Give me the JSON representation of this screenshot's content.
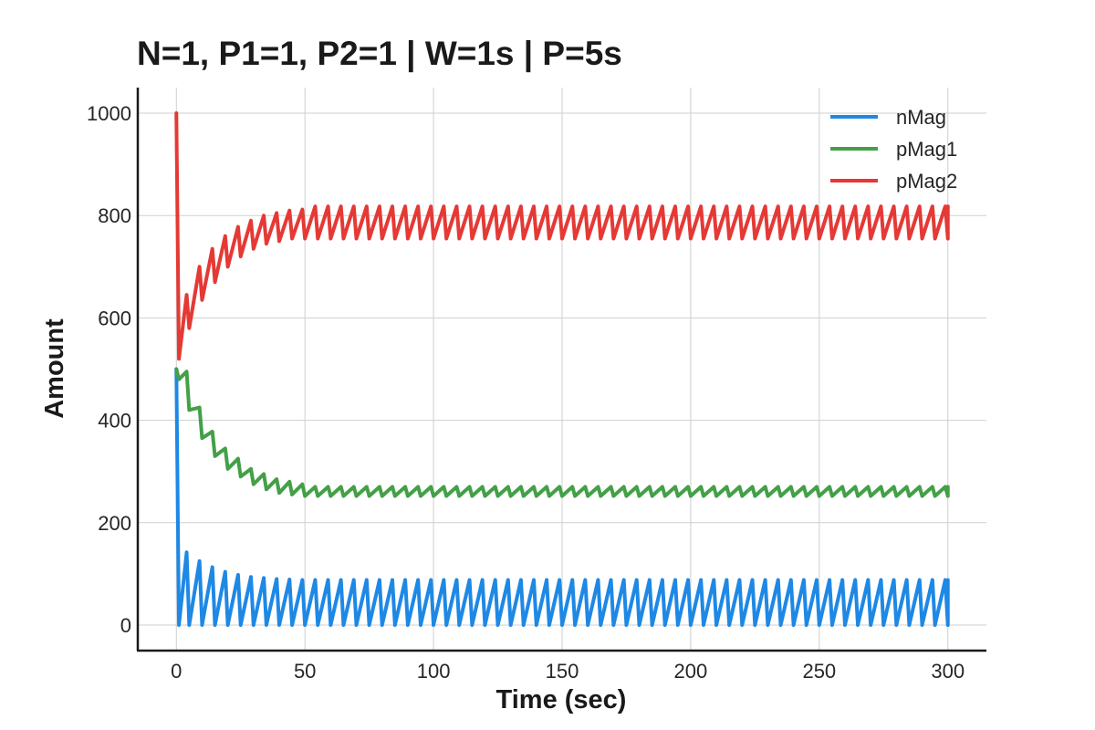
{
  "chart_data": {
    "type": "line",
    "title": "N=1, P1=1, P2=1 | W=1s | P=5s",
    "xlabel": "Time (sec)",
    "ylabel": "Amount",
    "xlim": [
      -15,
      315
    ],
    "ylim": [
      -50,
      1050
    ],
    "xticks": [
      0,
      50,
      100,
      150,
      200,
      250,
      300
    ],
    "yticks": [
      0,
      200,
      400,
      600,
      800,
      1000
    ],
    "grid": true,
    "legend_position": "top-right",
    "series": [
      {
        "name": "nMag",
        "color": "#1e88e5",
        "x": [
          0,
          1,
          4,
          5,
          9,
          10,
          14,
          15,
          19,
          20,
          24,
          25,
          29,
          30,
          34,
          35,
          39,
          40,
          44,
          45,
          49,
          50,
          299,
          300
        ],
        "values": [
          500,
          0,
          142,
          0,
          125,
          0,
          113,
          0,
          104,
          0,
          98,
          0,
          94,
          0,
          92,
          0,
          90,
          0,
          89,
          0,
          88,
          0,
          0,
          88
        ],
        "steady_pattern": {
          "period": 5,
          "low": 0,
          "high": 88,
          "from": 50,
          "to": 300
        }
      },
      {
        "name": "pMag1",
        "color": "#43a047",
        "x": [
          0,
          1,
          4,
          5,
          9,
          10,
          14,
          15,
          19,
          20,
          24,
          25,
          29,
          30,
          34,
          35,
          39,
          40,
          44,
          45,
          49,
          50,
          299,
          300
        ],
        "values": [
          500,
          480,
          495,
          420,
          425,
          365,
          378,
          330,
          345,
          305,
          325,
          290,
          305,
          275,
          295,
          265,
          285,
          258,
          280,
          255,
          275,
          252,
          252,
          270
        ],
        "steady_pattern": {
          "period": 5,
          "low": 252,
          "high": 270,
          "from": 50,
          "to": 300
        }
      },
      {
        "name": "pMag2",
        "color": "#e53935",
        "x": [
          0,
          1,
          4,
          5,
          9,
          10,
          14,
          15,
          19,
          20,
          24,
          25,
          29,
          30,
          34,
          35,
          39,
          40,
          44,
          45,
          49,
          50,
          299,
          300
        ],
        "values": [
          1000,
          520,
          645,
          580,
          700,
          635,
          735,
          670,
          760,
          700,
          778,
          720,
          790,
          735,
          800,
          745,
          805,
          750,
          810,
          755,
          812,
          755,
          755,
          818
        ],
        "steady_pattern": {
          "period": 5,
          "low": 755,
          "high": 818,
          "from": 50,
          "to": 300
        }
      }
    ]
  }
}
